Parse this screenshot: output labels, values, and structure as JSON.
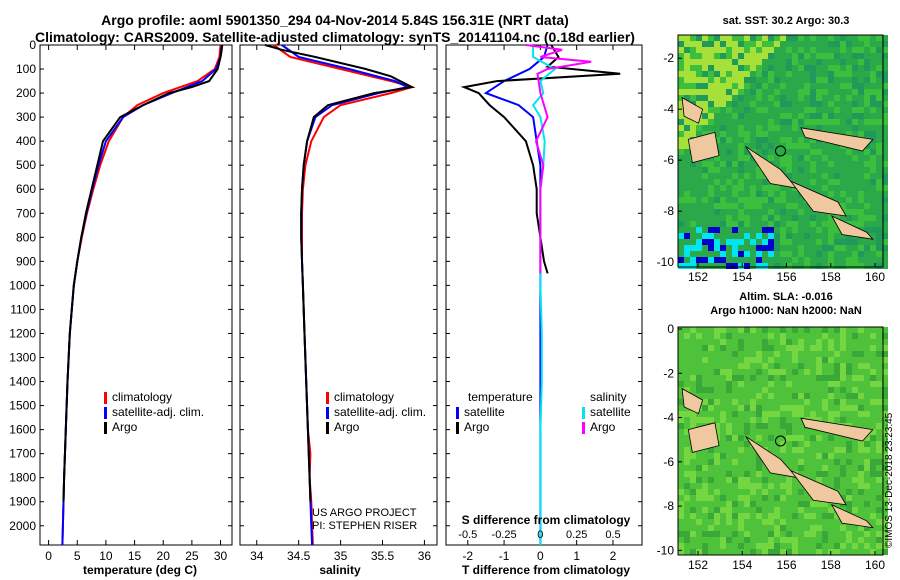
{
  "header": {
    "title_line1": "Argo profile: aoml 5901350_294 04-Nov-2014 5.84S 156.31E (NRT data)",
    "title_line2": "Climatology: CARS2009. Satellite-adjusted climatology: synTS_20141104.nc (0.18d earlier)"
  },
  "map_top": {
    "title": "sat. SST: 30.2 Argo: 30.3",
    "x_ticks": [
      "152",
      "154",
      "156",
      "158",
      "160"
    ],
    "y_ticks": [
      "-2",
      "-4",
      "-6",
      "-8",
      "-10"
    ]
  },
  "map_bottom": {
    "title_line1": "Altim. SLA: -0.016",
    "title_line2": "Argo h1000: NaN h2000: NaN",
    "x_ticks": [
      "152",
      "154",
      "156",
      "158",
      "160"
    ],
    "y_ticks": [
      "0",
      "-2",
      "-4",
      "-6",
      "-8",
      "-10"
    ]
  },
  "credit": {
    "line1": "US ARGO PROJECT",
    "line2": "PI: STEPHEN RISER"
  },
  "side_label": "©IMOS 13-Dec-2018 23:23:45",
  "colors": {
    "climatology": "#ff0000",
    "satellite": "#0000ff",
    "argo": "#000000",
    "sat_salinity": "#00e5ee",
    "argo_salinity": "#ff00ff"
  },
  "chart_data": [
    {
      "type": "line",
      "xlabel": "temperature (deg C)",
      "ylabel": "",
      "x_ticks": [
        "0",
        "5",
        "10",
        "15",
        "20",
        "25",
        "30"
      ],
      "y_ticks": [
        "0",
        "100",
        "200",
        "300",
        "400",
        "500",
        "600",
        "700",
        "800",
        "900",
        "1000",
        "1100",
        "1200",
        "1300",
        "1400",
        "1500",
        "1600",
        "1700",
        "1800",
        "1900",
        "2000"
      ],
      "xlim": [
        -1.5,
        32
      ],
      "ylim": [
        2080,
        0
      ],
      "legend": [
        "climatology",
        "satellite-adj. clim.",
        "Argo"
      ],
      "series": [
        {
          "name": "climatology",
          "depth": [
            0,
            50,
            100,
            150,
            200,
            250,
            300,
            400,
            500,
            600,
            700,
            800,
            900,
            1000,
            1200,
            1400,
            1600,
            1800,
            2000,
            2080
          ],
          "values": [
            30.0,
            29.8,
            29.0,
            26.0,
            20.0,
            15.5,
            13.0,
            10.5,
            9.0,
            7.8,
            6.7,
            5.8,
            5.0,
            4.4,
            3.7,
            3.3,
            3.0,
            2.7,
            2.5,
            2.4
          ]
        },
        {
          "name": "satellite-adj. clim.",
          "depth": [
            0,
            50,
            100,
            150,
            200,
            250,
            300,
            400,
            500,
            600,
            700,
            800,
            900,
            1000,
            1200,
            1400,
            1600,
            1800,
            2000,
            2080
          ],
          "values": [
            30.2,
            30.0,
            29.2,
            26.8,
            21.5,
            16.5,
            13.0,
            10.0,
            8.7,
            7.6,
            6.6,
            5.7,
            5.0,
            4.4,
            3.7,
            3.3,
            3.0,
            2.7,
            2.5,
            2.4
          ]
        },
        {
          "name": "Argo",
          "depth": [
            0,
            20,
            50,
            100,
            150,
            175,
            200,
            250,
            300,
            400,
            500,
            600,
            700,
            800,
            900,
            1000,
            1200,
            1400,
            1600,
            1800,
            1900
          ],
          "values": [
            30.3,
            30.2,
            30.0,
            29.5,
            28.0,
            25.0,
            21.0,
            16.5,
            12.5,
            9.5,
            8.5,
            7.5,
            6.5,
            5.7,
            5.0,
            4.4,
            3.7,
            3.3,
            3.0,
            2.7,
            2.6
          ]
        }
      ]
    },
    {
      "type": "line",
      "xlabel": "salinity",
      "ylabel": "",
      "x_ticks": [
        "34",
        "34.5",
        "35",
        "35.5",
        "36"
      ],
      "xlim": [
        33.8,
        36.15
      ],
      "ylim": [
        2080,
        0
      ],
      "legend": [
        "climatology",
        "satellite-adj. clim.",
        "Argo"
      ],
      "series": [
        {
          "name": "climatology",
          "depth": [
            0,
            50,
            100,
            150,
            175,
            200,
            250,
            300,
            400,
            500,
            600,
            700,
            800,
            900,
            1000,
            1200,
            1400,
            1600,
            1700,
            1800,
            1900,
            2000,
            2080
          ],
          "values": [
            34.2,
            34.4,
            35.0,
            35.6,
            35.85,
            35.6,
            35.0,
            34.8,
            34.65,
            34.58,
            34.55,
            34.54,
            34.54,
            34.54,
            34.55,
            34.57,
            34.59,
            34.61,
            34.64,
            34.63,
            34.65,
            34.66,
            34.67
          ]
        },
        {
          "name": "satellite-adj. clim.",
          "depth": [
            0,
            50,
            100,
            150,
            175,
            200,
            250,
            300,
            400,
            500,
            600,
            700,
            800,
            900,
            1000,
            1200,
            1400,
            1600,
            1800,
            2000,
            2080
          ],
          "values": [
            34.3,
            34.5,
            35.1,
            35.65,
            35.8,
            35.45,
            34.9,
            34.7,
            34.6,
            34.56,
            34.54,
            34.53,
            34.53,
            34.54,
            34.55,
            34.57,
            34.59,
            34.61,
            34.63,
            34.65,
            34.66
          ]
        },
        {
          "name": "Argo",
          "depth": [
            0,
            20,
            50,
            100,
            130,
            175,
            200,
            250,
            300,
            400,
            500,
            600,
            700,
            800,
            900,
            1000,
            1200,
            1400,
            1600,
            1800,
            1900
          ],
          "values": [
            34.1,
            34.3,
            34.7,
            35.3,
            35.6,
            35.85,
            35.4,
            34.85,
            34.68,
            34.6,
            34.56,
            34.54,
            34.53,
            34.53,
            34.54,
            34.55,
            34.57,
            34.59,
            34.61,
            34.63,
            34.64
          ]
        }
      ]
    },
    {
      "type": "line",
      "xlabel": "T difference from climatology",
      "xlabel_top": "S difference from climatology",
      "x_ticks": [
        "-2",
        "-1",
        "0",
        "1",
        "2"
      ],
      "x_ticks_top": [
        "-0.5",
        "-0.25",
        "0",
        "0.25",
        "0.5"
      ],
      "xlim": [
        -2.6,
        2.8
      ],
      "xlim_top": [
        -0.65,
        0.7
      ],
      "ylim": [
        2080,
        0
      ],
      "legend_left_title": "temperature",
      "legend_left": [
        "satellite",
        "Argo"
      ],
      "legend_right_title": "salinity",
      "legend_right": [
        "satellite",
        "Argo"
      ],
      "series": [
        {
          "name": "satellite",
          "depth": [
            0,
            50,
            100,
            150,
            200,
            250,
            300,
            400,
            500,
            600,
            700,
            800,
            900,
            1000,
            1200,
            1500,
            1800,
            2080
          ],
          "values": [
            0.2,
            0.1,
            -0.3,
            -1.0,
            -1.5,
            -0.6,
            -0.2,
            -0.1,
            0.0,
            0.0,
            0.0,
            0.0,
            0.0,
            0.0,
            0.0,
            0.0,
            0.0,
            0.0
          ]
        },
        {
          "name": "Argo",
          "depth": [
            0,
            50,
            90,
            120,
            150,
            175,
            200,
            250,
            300,
            400,
            500,
            600,
            700,
            800,
            900,
            950
          ],
          "values": [
            0.3,
            0.5,
            0.2,
            2.2,
            -1.2,
            -2.1,
            -1.7,
            -1.4,
            -1.0,
            -0.4,
            -0.2,
            -0.1,
            -0.1,
            0.0,
            0.1,
            0.2
          ]
        },
        {
          "name": "satellite",
          "depth": [
            0,
            50,
            100,
            150,
            200,
            250,
            300,
            400,
            500,
            600,
            700,
            800,
            900,
            1000,
            1200,
            1400,
            1600,
            1800,
            2000,
            2080
          ],
          "values": [
            -0.05,
            -0.05,
            0.1,
            0.0,
            0.02,
            -0.05,
            0.0,
            0.03,
            0.02,
            0.0,
            0.0,
            0.0,
            0.0,
            0.0,
            0.01,
            0.01,
            0.0,
            0.0,
            0.0,
            0.0
          ]
        }
      ]
    }
  ]
}
